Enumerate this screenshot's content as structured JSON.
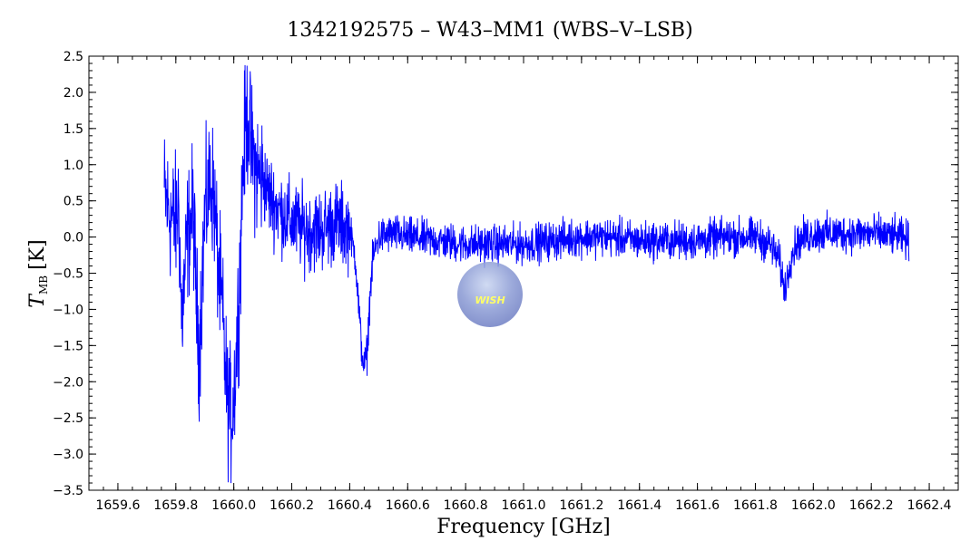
{
  "chart_data": {
    "type": "line",
    "title": "1342192575 – W43–MM1 (WBS–V–LSB)",
    "xlabel": "Frequency [GHz]",
    "ylabel_symbol": "T",
    "ylabel_subscript": "MB",
    "ylabel_unit": "[K]",
    "xlim": [
      1659.5,
      1662.5
    ],
    "ylim": [
      -3.5,
      2.5
    ],
    "x_ticks": [
      1659.6,
      1659.8,
      1660.0,
      1660.2,
      1660.4,
      1660.6,
      1660.8,
      1661.0,
      1661.2,
      1661.4,
      1661.6,
      1661.8,
      1662.0,
      1662.2,
      1662.4
    ],
    "x_tick_labels": [
      "1659.6",
      "1659.8",
      "1660.0",
      "1660.2",
      "1660.4",
      "1660.6",
      "1660.8",
      "1661.0",
      "1661.2",
      "1661.4",
      "1661.6",
      "1661.8",
      "1662.0",
      "1662.2",
      "1662.4"
    ],
    "y_ticks": [
      -3.5,
      -3.0,
      -2.5,
      -2.0,
      -1.5,
      -1.0,
      -0.5,
      0.0,
      0.5,
      1.0,
      1.5,
      2.0,
      2.5
    ],
    "y_tick_labels": [
      "−3.5",
      "−3.0",
      "−2.5",
      "−2.0",
      "−1.5",
      "−1.0",
      "−0.5",
      "0.0",
      "0.5",
      "1.0",
      "1.5",
      "2.0",
      "2.5"
    ],
    "series_color": "#0000ff",
    "grid": false,
    "series": [
      {
        "x": [
          1659.76,
          1659.78,
          1659.8,
          1659.81,
          1659.82,
          1659.84,
          1659.86,
          1659.87,
          1659.88,
          1659.9,
          1659.92,
          1659.93,
          1659.95,
          1659.96,
          1659.97,
          1659.98,
          1659.99,
          1660.0,
          1660.01,
          1660.02,
          1660.03,
          1660.04,
          1660.05,
          1660.06,
          1660.08,
          1660.1,
          1660.12,
          1660.15,
          1660.2,
          1660.25,
          1660.3,
          1660.35,
          1660.38,
          1660.4,
          1660.42,
          1660.43,
          1660.44,
          1660.45,
          1660.46,
          1660.47,
          1660.48,
          1660.5,
          1660.55,
          1660.6,
          1660.7,
          1660.8,
          1660.9,
          1661.0,
          1661.1,
          1661.2,
          1661.3,
          1661.4,
          1661.5,
          1661.6,
          1661.7,
          1661.8,
          1661.85,
          1661.88,
          1661.9,
          1661.91,
          1661.92,
          1661.94,
          1661.97,
          1662.0,
          1662.1,
          1662.2,
          1662.3,
          1662.33
        ],
        "y": [
          0.6,
          0.3,
          0.2,
          0.5,
          -1.2,
          0.0,
          0.4,
          -0.8,
          -1.6,
          0.3,
          0.8,
          0.6,
          -0.6,
          -1.0,
          -1.8,
          -2.3,
          -2.5,
          -2.2,
          -1.5,
          -0.6,
          0.8,
          1.5,
          1.7,
          1.2,
          0.9,
          0.8,
          0.6,
          0.4,
          0.2,
          0.1,
          0.1,
          0.2,
          0.15,
          0.1,
          -0.3,
          -0.9,
          -1.5,
          -1.8,
          -1.6,
          -0.8,
          -0.3,
          0.0,
          0.05,
          0.0,
          -0.05,
          -0.1,
          -0.1,
          -0.1,
          -0.05,
          0.0,
          0.0,
          -0.05,
          -0.05,
          -0.05,
          0.0,
          0.0,
          -0.1,
          -0.3,
          -0.7,
          -0.6,
          -0.3,
          -0.1,
          0.0,
          0.05,
          0.05,
          0.05,
          0.0,
          -0.05
        ]
      }
    ]
  }
}
